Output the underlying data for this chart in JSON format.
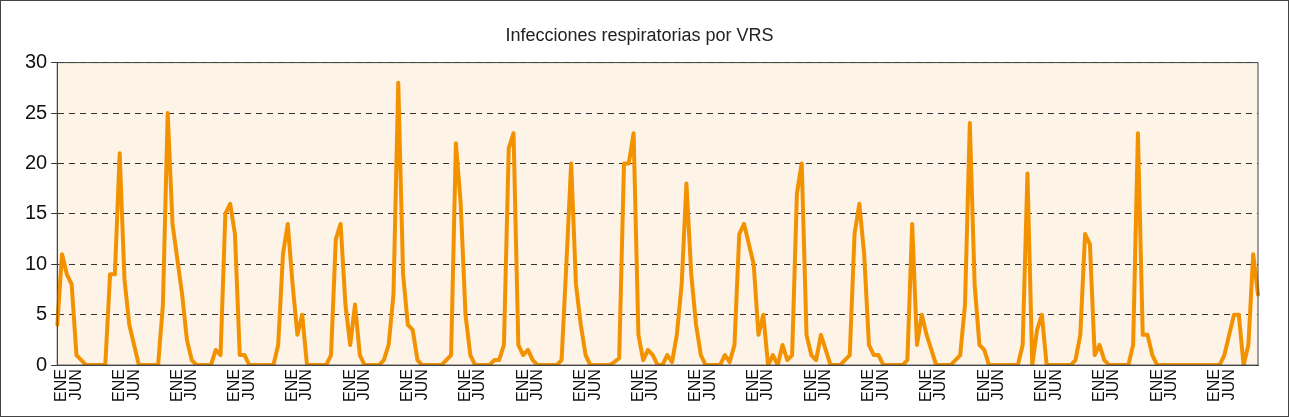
{
  "chart_data": {
    "type": "line",
    "title": "Infecciones respiratorias por VRS",
    "categories": [
      null,
      "ENE",
      null,
      null,
      "JUN",
      null,
      null,
      null,
      null,
      null,
      null,
      null,
      null,
      "ENE",
      null,
      null,
      "JUN",
      null,
      null,
      null,
      null,
      null,
      null,
      null,
      null,
      "ENE",
      null,
      null,
      "JUN",
      null,
      null,
      null,
      null,
      null,
      null,
      null,
      null,
      "ENE",
      null,
      null,
      "JUN",
      null,
      null,
      null,
      null,
      null,
      null,
      null,
      null,
      "ENE",
      null,
      null,
      "JUN",
      null,
      null,
      null,
      null,
      null,
      null,
      null,
      null,
      "ENE",
      null,
      null,
      "JUN",
      null,
      null,
      null,
      null,
      null,
      null,
      null,
      null,
      "ENE",
      null,
      null,
      "JUN",
      null,
      null,
      null,
      null,
      null,
      null,
      null,
      null,
      "ENE",
      null,
      null,
      "JUN",
      null,
      null,
      null,
      null,
      null,
      null,
      null,
      null,
      "ENE",
      null,
      null,
      "JUN",
      null,
      null,
      null,
      null,
      null,
      null,
      null,
      null,
      "ENE",
      null,
      null,
      "JUN",
      null,
      null,
      null,
      null,
      null,
      null,
      null,
      null,
      "ENE",
      null,
      null,
      "JUN",
      null,
      null,
      null,
      null,
      null,
      null,
      null,
      null,
      "ENE",
      null,
      null,
      "JUN",
      null,
      null,
      null,
      null,
      null,
      null,
      null,
      null,
      "ENE",
      null,
      null,
      "JUN",
      null,
      null,
      null,
      null,
      null,
      null,
      null,
      null,
      "ENE",
      null,
      null,
      "JUN",
      null,
      null,
      null,
      null,
      null,
      null,
      null,
      null,
      "ENE",
      null,
      null,
      "JUN",
      null,
      null,
      null,
      null,
      null,
      null,
      null,
      null,
      "ENE",
      null,
      null,
      "JUN",
      null,
      null,
      null,
      null,
      null,
      null,
      null,
      null,
      "ENE",
      null,
      null,
      "JUN",
      null,
      null,
      null,
      null,
      null,
      null,
      null,
      null,
      "ENE",
      null,
      null,
      "JUN",
      null,
      null,
      null,
      null,
      null,
      null,
      null,
      null,
      "ENE",
      null,
      null,
      "JUN",
      null,
      null,
      null,
      null,
      null,
      null,
      null,
      null,
      "ENE",
      null,
      null,
      "JUN",
      null,
      null,
      null,
      null,
      null,
      null,
      null,
      null,
      "ENE",
      null,
      null,
      "JUN",
      null,
      null,
      null,
      null,
      null,
      null
    ],
    "values": [
      4,
      11,
      9,
      8,
      1,
      0.5,
      0,
      0,
      0,
      0,
      0,
      9,
      9,
      21,
      8.5,
      4,
      2,
      0,
      0,
      0,
      0,
      0,
      6,
      25,
      14,
      10.5,
      7,
      2.5,
      0.5,
      0,
      0,
      0,
      0,
      1.5,
      1,
      15,
      16,
      13,
      1,
      1,
      0,
      0,
      0,
      0,
      0,
      0,
      2,
      11,
      14,
      8,
      3,
      5,
      0,
      0,
      0,
      0,
      0,
      1,
      12.5,
      14,
      6,
      2,
      6,
      1,
      0,
      0,
      0,
      0,
      0.5,
      2,
      7,
      28,
      9,
      4,
      3.5,
      0.5,
      0,
      0,
      0,
      0,
      0,
      0.5,
      1,
      22,
      16,
      5,
      1,
      0,
      0,
      0,
      0,
      0.5,
      0.5,
      2,
      21.5,
      23,
      2,
      1,
      1.5,
      0.5,
      0,
      0,
      0,
      0,
      0,
      0.5,
      10,
      20,
      8,
      4,
      1,
      0,
      0,
      0,
      0,
      0,
      0.3,
      0.7,
      20,
      20,
      23,
      3,
      0.5,
      1.5,
      1,
      0,
      0,
      1,
      0.3,
      3,
      8,
      18,
      9,
      4,
      1,
      0,
      0,
      0,
      0,
      1,
      0.3,
      2,
      13,
      14,
      12,
      10,
      3,
      5,
      0,
      1,
      0,
      2,
      0.5,
      1,
      17,
      20,
      3,
      1,
      0.5,
      3,
      1.5,
      0,
      0,
      0,
      0.5,
      1,
      13,
      16,
      11,
      2,
      1,
      1,
      0,
      0,
      0,
      0,
      0,
      0.5,
      14,
      2,
      5,
      3,
      1.5,
      0,
      0,
      0,
      0,
      0.5,
      1,
      6,
      24,
      8,
      2,
      1.5,
      0,
      0,
      0,
      0,
      0,
      0,
      0,
      2,
      19,
      0,
      3.5,
      5,
      0,
      0,
      0,
      0,
      0,
      0,
      0.5,
      3,
      13,
      12,
      1,
      2,
      0.5,
      0,
      0,
      0,
      0,
      0,
      2,
      23,
      3,
      3,
      1,
      0,
      0,
      0,
      0,
      0,
      0,
      0,
      0,
      0,
      0,
      0,
      0,
      0,
      0,
      1,
      3,
      5,
      5,
      0,
      2,
      11,
      7
    ],
    "color": "#f39200",
    "ylim": [
      0,
      30
    ],
    "yticks": [
      0,
      5,
      10,
      15,
      20,
      25,
      30
    ],
    "grid": "y",
    "marker": "none",
    "line_style": "solid"
  }
}
